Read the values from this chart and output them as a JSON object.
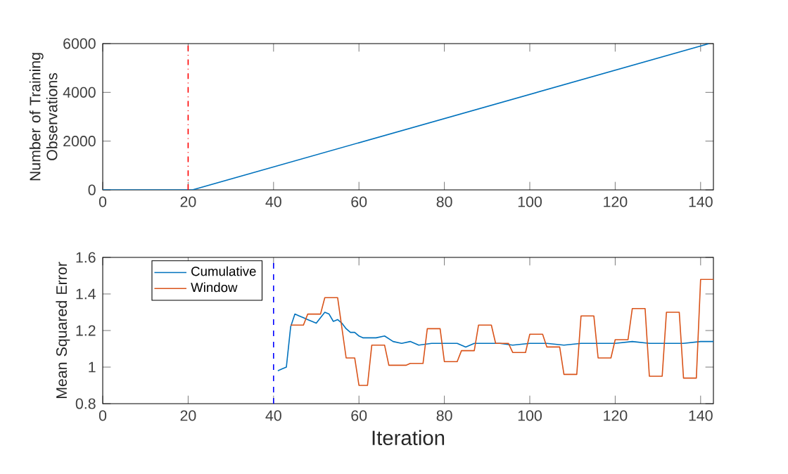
{
  "chart_data": [
    {
      "type": "line",
      "ylabel": "Number of Training Observations",
      "xlim": [
        0,
        143
      ],
      "ylim": [
        0,
        6000
      ],
      "xticks": [
        0,
        20,
        40,
        60,
        80,
        100,
        120,
        140
      ],
      "yticks": [
        0,
        2000,
        4000,
        6000
      ],
      "grid": false,
      "legend": false,
      "line_style": "solid",
      "series": [
        {
          "color": "#0072bd",
          "x": [
            0,
            21,
            142
          ],
          "values": [
            0,
            0,
            6000
          ]
        }
      ],
      "ref_lines": [
        {
          "axis": "x",
          "value": 20,
          "color": "#ff0000",
          "line_style": "dashdot"
        }
      ]
    },
    {
      "type": "line",
      "xlabel": "Iteration",
      "ylabel": "Mean Squared Error",
      "xlim": [
        0,
        143
      ],
      "ylim": [
        0.8,
        1.6
      ],
      "xticks": [
        0,
        20,
        40,
        60,
        80,
        100,
        120,
        140
      ],
      "yticks": [
        0.8,
        1,
        1.2,
        1.4,
        1.6
      ],
      "grid": false,
      "legend": "top left",
      "line_style": "solid",
      "series": [
        {
          "name": "Cumulative",
          "color": "#0072bd",
          "x": [
            41,
            42,
            43,
            44,
            45,
            46,
            47,
            48,
            49,
            50,
            51,
            52,
            53,
            54,
            55,
            56,
            57,
            58,
            59,
            60,
            61,
            64,
            66,
            68,
            70,
            72,
            74,
            77,
            80,
            83,
            85,
            87,
            90,
            93,
            96,
            100,
            104,
            108,
            112,
            116,
            120,
            124,
            128,
            132,
            136,
            140,
            143
          ],
          "values": [
            0.98,
            0.99,
            1.0,
            1.22,
            1.29,
            1.28,
            1.27,
            1.26,
            1.25,
            1.24,
            1.27,
            1.3,
            1.29,
            1.25,
            1.26,
            1.24,
            1.21,
            1.19,
            1.19,
            1.17,
            1.16,
            1.16,
            1.17,
            1.14,
            1.13,
            1.14,
            1.12,
            1.13,
            1.13,
            1.13,
            1.11,
            1.13,
            1.13,
            1.13,
            1.12,
            1.13,
            1.13,
            1.12,
            1.13,
            1.13,
            1.13,
            1.14,
            1.13,
            1.13,
            1.13,
            1.14,
            1.14
          ]
        },
        {
          "name": "Window",
          "color": "#d95319",
          "x": [
            44,
            47,
            48,
            51,
            52,
            55,
            57,
            59,
            60,
            62,
            63,
            66,
            67,
            71,
            72,
            75,
            76,
            79,
            80,
            83,
            84,
            87,
            88,
            91,
            92,
            95,
            96,
            99,
            100,
            103,
            104,
            107,
            108,
            111,
            112,
            115,
            116,
            119,
            120,
            123,
            124,
            127,
            128,
            131,
            132,
            135,
            136,
            139,
            140,
            143
          ],
          "values": [
            1.23,
            1.23,
            1.29,
            1.29,
            1.38,
            1.38,
            1.05,
            1.05,
            0.9,
            0.9,
            1.12,
            1.12,
            1.01,
            1.01,
            1.02,
            1.02,
            1.21,
            1.21,
            1.03,
            1.03,
            1.09,
            1.09,
            1.23,
            1.23,
            1.13,
            1.13,
            1.08,
            1.08,
            1.18,
            1.18,
            1.11,
            1.11,
            0.96,
            0.96,
            1.28,
            1.28,
            1.05,
            1.05,
            1.15,
            1.15,
            1.32,
            1.32,
            0.95,
            0.95,
            1.3,
            1.3,
            0.94,
            0.94,
            1.48,
            1.48
          ]
        }
      ],
      "ref_lines": [
        {
          "axis": "x",
          "value": 40,
          "color": "#0000ff",
          "line_style": "dashed"
        }
      ]
    }
  ]
}
